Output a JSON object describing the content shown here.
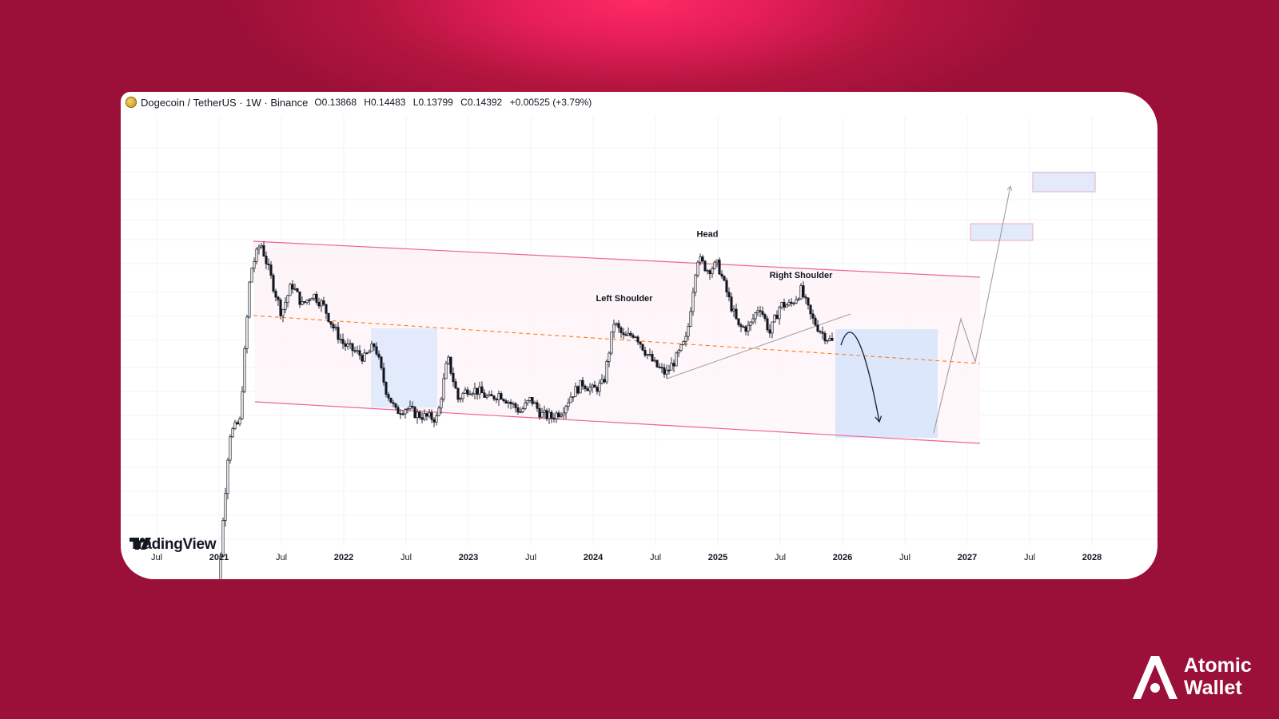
{
  "header": {
    "symbol": "Dogecoin / TetherUS · 1W · Binance",
    "open": "O0.13868",
    "high": "H0.14483",
    "low": "L0.13799",
    "close": "C0.14392",
    "change": "+0.00525 (+3.79%)"
  },
  "branding": {
    "tradingview": "TradingView",
    "brand_line1": "Atomic",
    "brand_line2": "Wallet"
  },
  "colors": {
    "channel": "#f06292",
    "midline": "#ff7a1a",
    "zone_fill": "#dde8fb",
    "candle": "#131722"
  },
  "chart_data": {
    "type": "line",
    "title": "",
    "xlabel": "",
    "ylabel": "",
    "x_ticks": [
      "Jul",
      "2021",
      "Jul",
      "2022",
      "Jul",
      "2023",
      "Jul",
      "2024",
      "Jul",
      "2025",
      "Jul",
      "2026",
      "Jul",
      "2027",
      "Jul",
      "2028"
    ],
    "xlim": [
      "2020-04",
      "2028-03"
    ],
    "y_scale": "log",
    "y_axis_visible": false,
    "grid": true,
    "series": [
      {
        "values": [
          [
            "2020-12",
            0.003
          ],
          [
            "2021-01",
            0.01
          ],
          [
            "2021-02",
            0.05
          ],
          [
            "2021-03",
            0.058
          ],
          [
            "2021-04",
            0.32
          ],
          [
            "2021-05",
            0.45
          ],
          [
            "2021-06",
            0.3
          ],
          [
            "2021-07",
            0.2
          ],
          [
            "2021-08",
            0.28
          ],
          [
            "2021-09",
            0.22
          ],
          [
            "2021-10",
            0.25
          ],
          [
            "2021-11",
            0.22
          ],
          [
            "2021-12",
            0.17
          ],
          [
            "2022-01",
            0.14
          ],
          [
            "2022-02",
            0.13
          ],
          [
            "2022-03",
            0.12
          ],
          [
            "2022-04",
            0.14
          ],
          [
            "2022-05",
            0.085
          ],
          [
            "2022-06",
            0.065
          ],
          [
            "2022-07",
            0.068
          ],
          [
            "2022-08",
            0.063
          ],
          [
            "2022-09",
            0.061
          ],
          [
            "2022-10",
            0.06
          ],
          [
            "2022-11",
            0.12
          ],
          [
            "2022-12",
            0.075
          ],
          [
            "2023-01",
            0.085
          ],
          [
            "2023-02",
            0.082
          ],
          [
            "2023-03",
            0.075
          ],
          [
            "2023-04",
            0.08
          ],
          [
            "2023-05",
            0.072
          ],
          [
            "2023-06",
            0.065
          ],
          [
            "2023-07",
            0.075
          ],
          [
            "2023-08",
            0.063
          ],
          [
            "2023-09",
            0.061
          ],
          [
            "2023-10",
            0.066
          ],
          [
            "2023-11",
            0.08
          ],
          [
            "2023-12",
            0.09
          ],
          [
            "2024-01",
            0.083
          ],
          [
            "2024-02",
            0.09
          ],
          [
            "2024-03",
            0.18
          ],
          [
            "2024-04",
            0.15
          ],
          [
            "2024-05",
            0.16
          ],
          [
            "2024-06",
            0.13
          ],
          [
            "2024-07",
            0.11
          ],
          [
            "2024-08",
            0.1
          ],
          [
            "2024-09",
            0.12
          ],
          [
            "2024-10",
            0.15
          ],
          [
            "2024-11",
            0.38
          ],
          [
            "2024-12",
            0.33
          ],
          [
            "2025-01",
            0.35
          ],
          [
            "2025-02",
            0.24
          ],
          [
            "2025-03",
            0.17
          ],
          [
            "2025-04",
            0.17
          ],
          [
            "2025-05",
            0.22
          ],
          [
            "2025-06",
            0.16
          ],
          [
            "2025-07",
            0.22
          ],
          [
            "2025-08",
            0.22
          ],
          [
            "2025-09",
            0.26
          ],
          [
            "2025-10",
            0.19
          ],
          [
            "2025-11",
            0.16
          ],
          [
            "2025-12",
            0.144
          ]
        ]
      }
    ],
    "annotations": [
      {
        "text": "Left Shoulder",
        "x": "2024-04",
        "y": 0.23
      },
      {
        "text": "Head",
        "x": "2024-12",
        "y": 0.48
      },
      {
        "text": "Right Shoulder",
        "x": "2025-09",
        "y": 0.3
      }
    ]
  }
}
